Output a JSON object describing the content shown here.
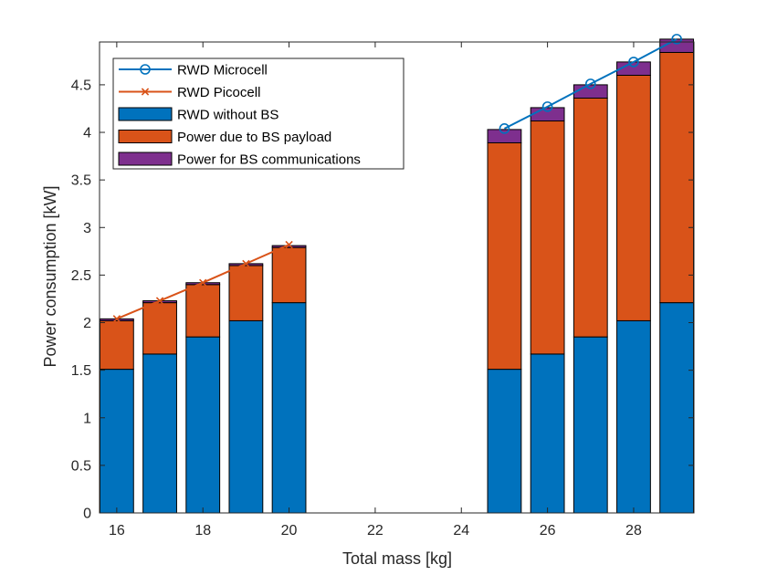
{
  "chart_data": {
    "type": "bar",
    "xlabel": "Total mass [kg]",
    "ylabel": "Power consumption [kW]",
    "xlim": [
      15.6,
      29.4
    ],
    "ylim": [
      0,
      4.95
    ],
    "xticks": [
      "16",
      "18",
      "20",
      "22",
      "24",
      "26",
      "28"
    ],
    "xtick_values": [
      16,
      18,
      20,
      22,
      24,
      26,
      28
    ],
    "yticks": [
      "0",
      "0.5",
      "1",
      "1.5",
      "2",
      "2.5",
      "3",
      "3.5",
      "4",
      "4.5"
    ],
    "ytick_values": [
      0,
      0.5,
      1,
      1.5,
      2,
      2.5,
      3,
      3.5,
      4,
      4.5
    ],
    "grid": false,
    "legend_location": "top-left",
    "stacked_series": [
      {
        "name": "RWD without BS",
        "color": "#0072BD",
        "x": [
          16,
          17,
          18,
          19,
          20,
          25,
          26,
          27,
          28,
          29
        ],
        "values": [
          1.51,
          1.67,
          1.85,
          2.02,
          2.21,
          1.51,
          1.67,
          1.85,
          2.02,
          2.21
        ]
      },
      {
        "name": "Power due to BS payload",
        "color": "#D95319",
        "x": [
          16,
          17,
          18,
          19,
          20,
          25,
          26,
          27,
          28,
          29
        ],
        "values": [
          0.51,
          0.54,
          0.55,
          0.58,
          0.58,
          2.38,
          2.45,
          2.51,
          2.58,
          2.63
        ]
      },
      {
        "name": "Power for BS communications",
        "color": "#7E2F8E",
        "x": [
          16,
          17,
          18,
          19,
          20,
          25,
          26,
          27,
          28,
          29
        ],
        "values": [
          0.02,
          0.02,
          0.02,
          0.02,
          0.02,
          0.14,
          0.14,
          0.14,
          0.14,
          0.14
        ]
      }
    ],
    "line_series": [
      {
        "name": "RWD Microcell",
        "color": "#0072BD",
        "marker": "circle",
        "x": [
          25,
          26,
          27,
          28,
          29
        ],
        "values": [
          4.04,
          4.27,
          4.51,
          4.74,
          4.98
        ]
      },
      {
        "name": "RWD Picocell",
        "color": "#D95319",
        "marker": "x",
        "x": [
          16,
          17,
          18,
          19,
          20
        ],
        "values": [
          2.04,
          2.23,
          2.42,
          2.62,
          2.82
        ]
      }
    ],
    "legend": [
      {
        "label": "RWD Microcell",
        "kind": "line",
        "color": "#0072BD",
        "marker": "circle"
      },
      {
        "label": "RWD Picocell",
        "kind": "line",
        "color": "#D95319",
        "marker": "x"
      },
      {
        "label": "RWD without BS",
        "kind": "patch",
        "color": "#0072BD"
      },
      {
        "label": "Power due to BS payload",
        "kind": "patch",
        "color": "#D95319"
      },
      {
        "label": "Power for BS communications",
        "kind": "patch",
        "color": "#7E2F8E"
      }
    ]
  }
}
